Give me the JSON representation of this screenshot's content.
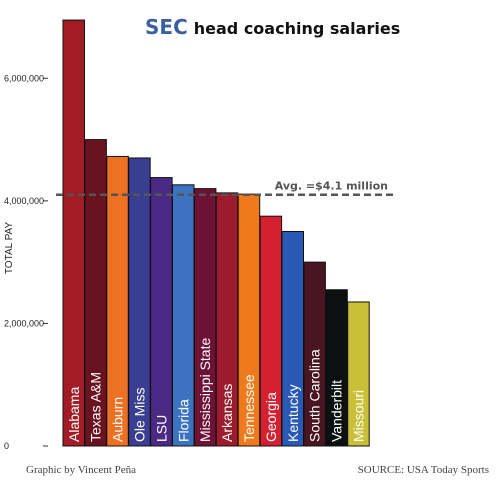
{
  "chart_data": {
    "type": "bar",
    "title_highlight": "SEC",
    "title_rest": "head coaching salaries",
    "ylabel": "TOTAL PAY",
    "ylim": [
      0,
      7000000
    ],
    "yticks": [
      0,
      2000000,
      4000000,
      6000000
    ],
    "ytick_labels": [
      "0",
      "2,000,000",
      "4,000,000",
      "6,000,000"
    ],
    "categories": [
      "Alabama",
      "Texas A&M",
      "Auburn",
      "Ole Miss",
      "LSU",
      "Florida",
      "Mississippi State",
      "Arkansas",
      "Tennessee",
      "Georgia",
      "Kentucky",
      "South Carolina",
      "Vanderbilt",
      "Missouri"
    ],
    "values": [
      6950000,
      5000000,
      4725000,
      4700000,
      4380000,
      4262000,
      4200000,
      4130000,
      4110000,
      3750000,
      3500000,
      3000000,
      2550000,
      2350000
    ],
    "colors": [
      "#a11c24",
      "#6b1220",
      "#ee7022",
      "#3a3e93",
      "#4b2a86",
      "#3c72c0",
      "#6d1234",
      "#9c1c2d",
      "#ee7a1c",
      "#d42031",
      "#2a59b5",
      "#4a1522",
      "#0c1010",
      "#c9c038"
    ],
    "average": {
      "value": 4100000,
      "label": "Avg. =$4.1 million"
    },
    "grid": false
  },
  "footer": {
    "credit": "Graphic by Vincent Peña",
    "source": "SOURCE: USA Today Sports"
  }
}
